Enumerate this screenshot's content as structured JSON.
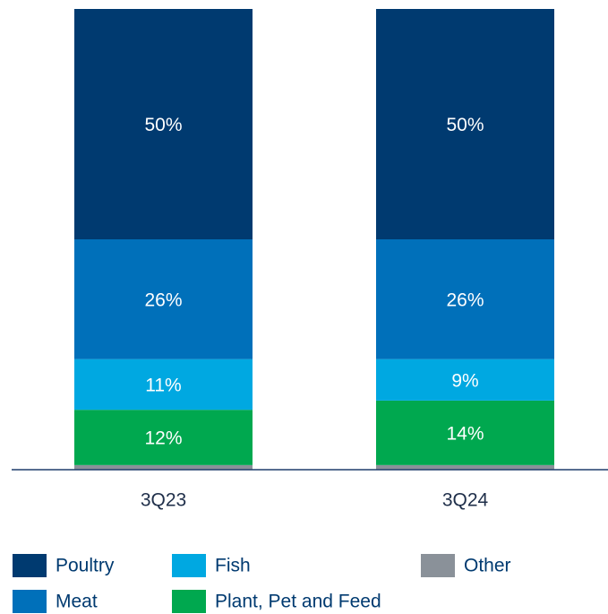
{
  "chart_data": {
    "type": "stacked_bar",
    "categories": [
      "3Q23",
      "3Q24"
    ],
    "ylim": [
      0,
      100
    ],
    "series": [
      {
        "name": "Other",
        "color": "#8a9199",
        "values": [
          1,
          1
        ]
      },
      {
        "name": "Plant, Pet and Feed",
        "color": "#00a84f",
        "values": [
          12,
          14
        ],
        "value_labels": [
          "12%",
          "14%"
        ]
      },
      {
        "name": "Fish",
        "color": "#00a8e1",
        "values": [
          11,
          9
        ],
        "value_labels": [
          "11%",
          "9%"
        ]
      },
      {
        "name": "Meat",
        "color": "#0070ba",
        "values": [
          26,
          26
        ],
        "value_labels": [
          "26%",
          "26%"
        ]
      },
      {
        "name": "Poultry",
        "color": "#003a70",
        "values": [
          50,
          50
        ],
        "value_labels": [
          "50%",
          "50%"
        ]
      }
    ]
  }
}
